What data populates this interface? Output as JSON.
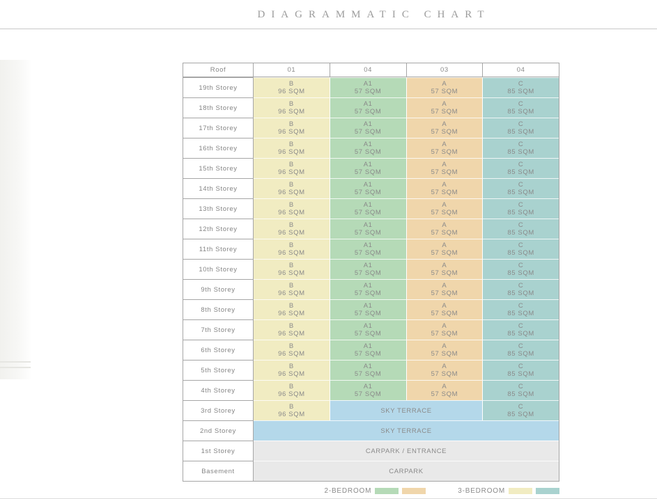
{
  "title": "DIAGRAMMATIC CHART",
  "colors": {
    "yellow": "#f1ecc2",
    "green": "#b5dab7",
    "orange": "#f0d6ab",
    "teal": "#a9d2cf",
    "blue": "#b4d8ea",
    "gray": "#e9e9e9"
  },
  "header": {
    "label": "Roof",
    "columns": [
      "01",
      "04",
      "03",
      "04"
    ]
  },
  "rows": [
    {
      "label": "19th Storey",
      "cells": [
        {
          "text": "B",
          "sub": "96 SQM",
          "color": "yellow",
          "span": 1
        },
        {
          "text": "A1",
          "sub": "57 SQM",
          "color": "green",
          "span": 1
        },
        {
          "text": "A",
          "sub": "57 SQM",
          "color": "orange",
          "span": 1
        },
        {
          "text": "C",
          "sub": "85 SQM",
          "color": "teal",
          "span": 1
        }
      ]
    },
    {
      "label": "18th Storey",
      "cells": [
        {
          "text": "B",
          "sub": "96 SQM",
          "color": "yellow",
          "span": 1
        },
        {
          "text": "A1",
          "sub": "57 SQM",
          "color": "green",
          "span": 1
        },
        {
          "text": "A",
          "sub": "57 SQM",
          "color": "orange",
          "span": 1
        },
        {
          "text": "C",
          "sub": "85 SQM",
          "color": "teal",
          "span": 1
        }
      ]
    },
    {
      "label": "17th Storey",
      "cells": [
        {
          "text": "B",
          "sub": "96 SQM",
          "color": "yellow",
          "span": 1
        },
        {
          "text": "A1",
          "sub": "57 SQM",
          "color": "green",
          "span": 1
        },
        {
          "text": "A",
          "sub": "57 SQM",
          "color": "orange",
          "span": 1
        },
        {
          "text": "C",
          "sub": "85 SQM",
          "color": "teal",
          "span": 1
        }
      ]
    },
    {
      "label": "16th Storey",
      "cells": [
        {
          "text": "B",
          "sub": "96 SQM",
          "color": "yellow",
          "span": 1
        },
        {
          "text": "A1",
          "sub": "57 SQM",
          "color": "green",
          "span": 1
        },
        {
          "text": "A",
          "sub": "57 SQM",
          "color": "orange",
          "span": 1
        },
        {
          "text": "C",
          "sub": "85 SQM",
          "color": "teal",
          "span": 1
        }
      ]
    },
    {
      "label": "15th Storey",
      "cells": [
        {
          "text": "B",
          "sub": "96 SQM",
          "color": "yellow",
          "span": 1
        },
        {
          "text": "A1",
          "sub": "57 SQM",
          "color": "green",
          "span": 1
        },
        {
          "text": "A",
          "sub": "57 SQM",
          "color": "orange",
          "span": 1
        },
        {
          "text": "C",
          "sub": "85 SQM",
          "color": "teal",
          "span": 1
        }
      ]
    },
    {
      "label": "14th Storey",
      "cells": [
        {
          "text": "B",
          "sub": "96 SQM",
          "color": "yellow",
          "span": 1
        },
        {
          "text": "A1",
          "sub": "57 SQM",
          "color": "green",
          "span": 1
        },
        {
          "text": "A",
          "sub": "57 SQM",
          "color": "orange",
          "span": 1
        },
        {
          "text": "C",
          "sub": "85 SQM",
          "color": "teal",
          "span": 1
        }
      ]
    },
    {
      "label": "13th Storey",
      "cells": [
        {
          "text": "B",
          "sub": "96 SQM",
          "color": "yellow",
          "span": 1
        },
        {
          "text": "A1",
          "sub": "57 SQM",
          "color": "green",
          "span": 1
        },
        {
          "text": "A",
          "sub": "57 SQM",
          "color": "orange",
          "span": 1
        },
        {
          "text": "C",
          "sub": "85 SQM",
          "color": "teal",
          "span": 1
        }
      ]
    },
    {
      "label": "12th Storey",
      "cells": [
        {
          "text": "B",
          "sub": "96 SQM",
          "color": "yellow",
          "span": 1
        },
        {
          "text": "A1",
          "sub": "57 SQM",
          "color": "green",
          "span": 1
        },
        {
          "text": "A",
          "sub": "57 SQM",
          "color": "orange",
          "span": 1
        },
        {
          "text": "C",
          "sub": "85 SQM",
          "color": "teal",
          "span": 1
        }
      ]
    },
    {
      "label": "11th Storey",
      "cells": [
        {
          "text": "B",
          "sub": "96 SQM",
          "color": "yellow",
          "span": 1
        },
        {
          "text": "A1",
          "sub": "57 SQM",
          "color": "green",
          "span": 1
        },
        {
          "text": "A",
          "sub": "57 SQM",
          "color": "orange",
          "span": 1
        },
        {
          "text": "C",
          "sub": "85 SQM",
          "color": "teal",
          "span": 1
        }
      ]
    },
    {
      "label": "10th Storey",
      "cells": [
        {
          "text": "B",
          "sub": "96 SQM",
          "color": "yellow",
          "span": 1
        },
        {
          "text": "A1",
          "sub": "57 SQM",
          "color": "green",
          "span": 1
        },
        {
          "text": "A",
          "sub": "57 SQM",
          "color": "orange",
          "span": 1
        },
        {
          "text": "C",
          "sub": "85 SQM",
          "color": "teal",
          "span": 1
        }
      ]
    },
    {
      "label": "9th Storey",
      "cells": [
        {
          "text": "B",
          "sub": "96 SQM",
          "color": "yellow",
          "span": 1
        },
        {
          "text": "A1",
          "sub": "57 SQM",
          "color": "green",
          "span": 1
        },
        {
          "text": "A",
          "sub": "57 SQM",
          "color": "orange",
          "span": 1
        },
        {
          "text": "C",
          "sub": "85 SQM",
          "color": "teal",
          "span": 1
        }
      ]
    },
    {
      "label": "8th Storey",
      "cells": [
        {
          "text": "B",
          "sub": "96 SQM",
          "color": "yellow",
          "span": 1
        },
        {
          "text": "A1",
          "sub": "57 SQM",
          "color": "green",
          "span": 1
        },
        {
          "text": "A",
          "sub": "57 SQM",
          "color": "orange",
          "span": 1
        },
        {
          "text": "C",
          "sub": "85 SQM",
          "color": "teal",
          "span": 1
        }
      ]
    },
    {
      "label": "7th Storey",
      "cells": [
        {
          "text": "B",
          "sub": "96 SQM",
          "color": "yellow",
          "span": 1
        },
        {
          "text": "A1",
          "sub": "57 SQM",
          "color": "green",
          "span": 1
        },
        {
          "text": "A",
          "sub": "57 SQM",
          "color": "orange",
          "span": 1
        },
        {
          "text": "C",
          "sub": "85 SQM",
          "color": "teal",
          "span": 1
        }
      ]
    },
    {
      "label": "6th Storey",
      "cells": [
        {
          "text": "B",
          "sub": "96 SQM",
          "color": "yellow",
          "span": 1
        },
        {
          "text": "A1",
          "sub": "57 SQM",
          "color": "green",
          "span": 1
        },
        {
          "text": "A",
          "sub": "57 SQM",
          "color": "orange",
          "span": 1
        },
        {
          "text": "C",
          "sub": "85 SQM",
          "color": "teal",
          "span": 1
        }
      ]
    },
    {
      "label": "5th Storey",
      "cells": [
        {
          "text": "B",
          "sub": "96 SQM",
          "color": "yellow",
          "span": 1
        },
        {
          "text": "A1",
          "sub": "57 SQM",
          "color": "green",
          "span": 1
        },
        {
          "text": "A",
          "sub": "57 SQM",
          "color": "orange",
          "span": 1
        },
        {
          "text": "C",
          "sub": "85 SQM",
          "color": "teal",
          "span": 1
        }
      ]
    },
    {
      "label": "4th Storey",
      "cells": [
        {
          "text": "B",
          "sub": "96 SQM",
          "color": "yellow",
          "span": 1
        },
        {
          "text": "A1",
          "sub": "57 SQM",
          "color": "green",
          "span": 1
        },
        {
          "text": "A",
          "sub": "57 SQM",
          "color": "orange",
          "span": 1
        },
        {
          "text": "C",
          "sub": "85 SQM",
          "color": "teal",
          "span": 1
        }
      ]
    },
    {
      "label": "3rd Storey",
      "cells": [
        {
          "text": "B",
          "sub": "96 SQM",
          "color": "yellow",
          "span": 1
        },
        {
          "text": "SKY TERRACE",
          "color": "blue",
          "span": 2
        },
        {
          "text": "C",
          "sub": "85 SQM",
          "color": "teal",
          "span": 1
        }
      ]
    },
    {
      "label": "2nd Storey",
      "cells": [
        {
          "text": "SKY TERRACE",
          "color": "blue",
          "span": 4
        }
      ]
    },
    {
      "label": "1st Storey",
      "cells": [
        {
          "text": "CARPARK / ENTRANCE",
          "color": "gray",
          "span": 4
        }
      ]
    },
    {
      "label": "Basement",
      "cells": [
        {
          "text": "CARPARK",
          "color": "gray",
          "span": 4
        }
      ]
    }
  ],
  "legend": [
    {
      "label": "2-BEDROOM",
      "swatches": [
        "green",
        "orange"
      ]
    },
    {
      "label": "3-BEDROOM",
      "swatches": [
        "yellow",
        "teal"
      ]
    }
  ]
}
